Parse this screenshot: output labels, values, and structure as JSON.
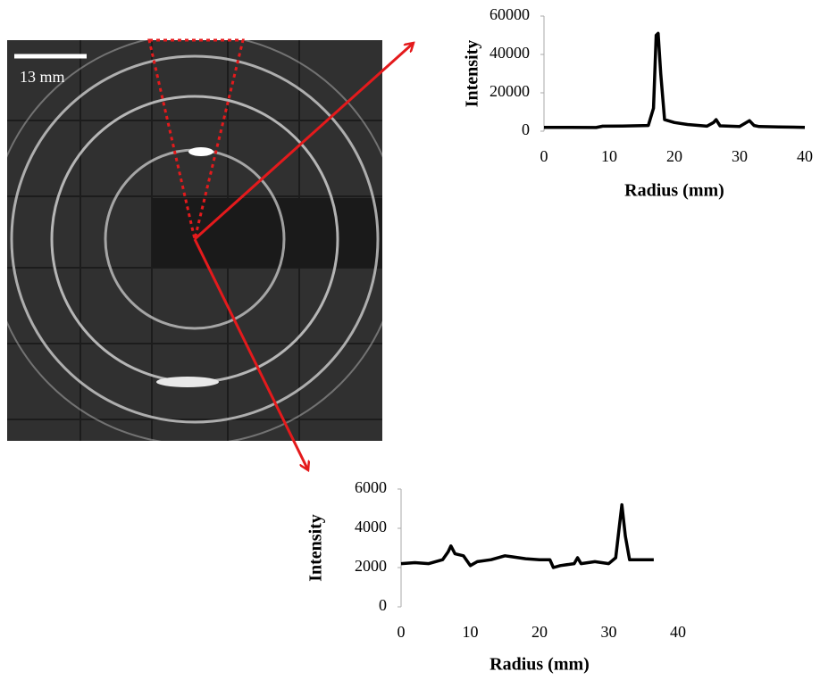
{
  "image": {
    "scale_label": "13 mm"
  },
  "chart_data": [
    {
      "type": "line",
      "color": "#000000",
      "x": [
        0,
        4,
        8,
        9,
        12,
        16,
        16.8,
        17.2,
        17.5,
        17.9,
        18.5,
        20,
        22,
        25,
        26,
        26.4,
        27,
        30,
        31.5,
        32.2,
        33,
        36,
        40
      ],
      "values": [
        2000,
        2000,
        1900,
        2600,
        2700,
        3000,
        12000,
        50000,
        51000,
        30000,
        6000,
        4500,
        3500,
        2600,
        4500,
        6000,
        2800,
        2400,
        5500,
        3000,
        2400,
        2200,
        2000
      ],
      "xlim": [
        0,
        40
      ],
      "ylim": [
        0,
        60000
      ],
      "xticks": [
        0,
        10,
        20,
        30,
        40
      ],
      "yticks": [
        0,
        20000,
        40000,
        60000
      ],
      "xlabel": "Radius (mm)",
      "ylabel": "Intensity"
    },
    {
      "type": "line",
      "color": "#000000",
      "x": [
        0,
        2,
        4,
        6,
        6.8,
        7.2,
        7.8,
        9,
        10,
        11,
        13,
        15,
        16,
        18,
        20,
        21.5,
        22,
        23,
        25,
        25.5,
        26,
        28,
        30,
        31,
        31.5,
        31.9,
        32.4,
        33,
        34,
        36.5
      ],
      "values": [
        2200,
        2250,
        2200,
        2400,
        2800,
        3100,
        2700,
        2600,
        2100,
        2300,
        2400,
        2600,
        2550,
        2450,
        2400,
        2400,
        2000,
        2100,
        2200,
        2500,
        2200,
        2300,
        2200,
        2500,
        4000,
        5200,
        3600,
        2400,
        2400,
        2400
      ],
      "xlim": [
        0,
        40
      ],
      "ylim": [
        0,
        6000
      ],
      "xticks": [
        0,
        10,
        20,
        30,
        40
      ],
      "yticks": [
        0,
        2000,
        4000,
        6000
      ],
      "xlabel": "Radius (mm)",
      "ylabel": "Intensity"
    }
  ]
}
